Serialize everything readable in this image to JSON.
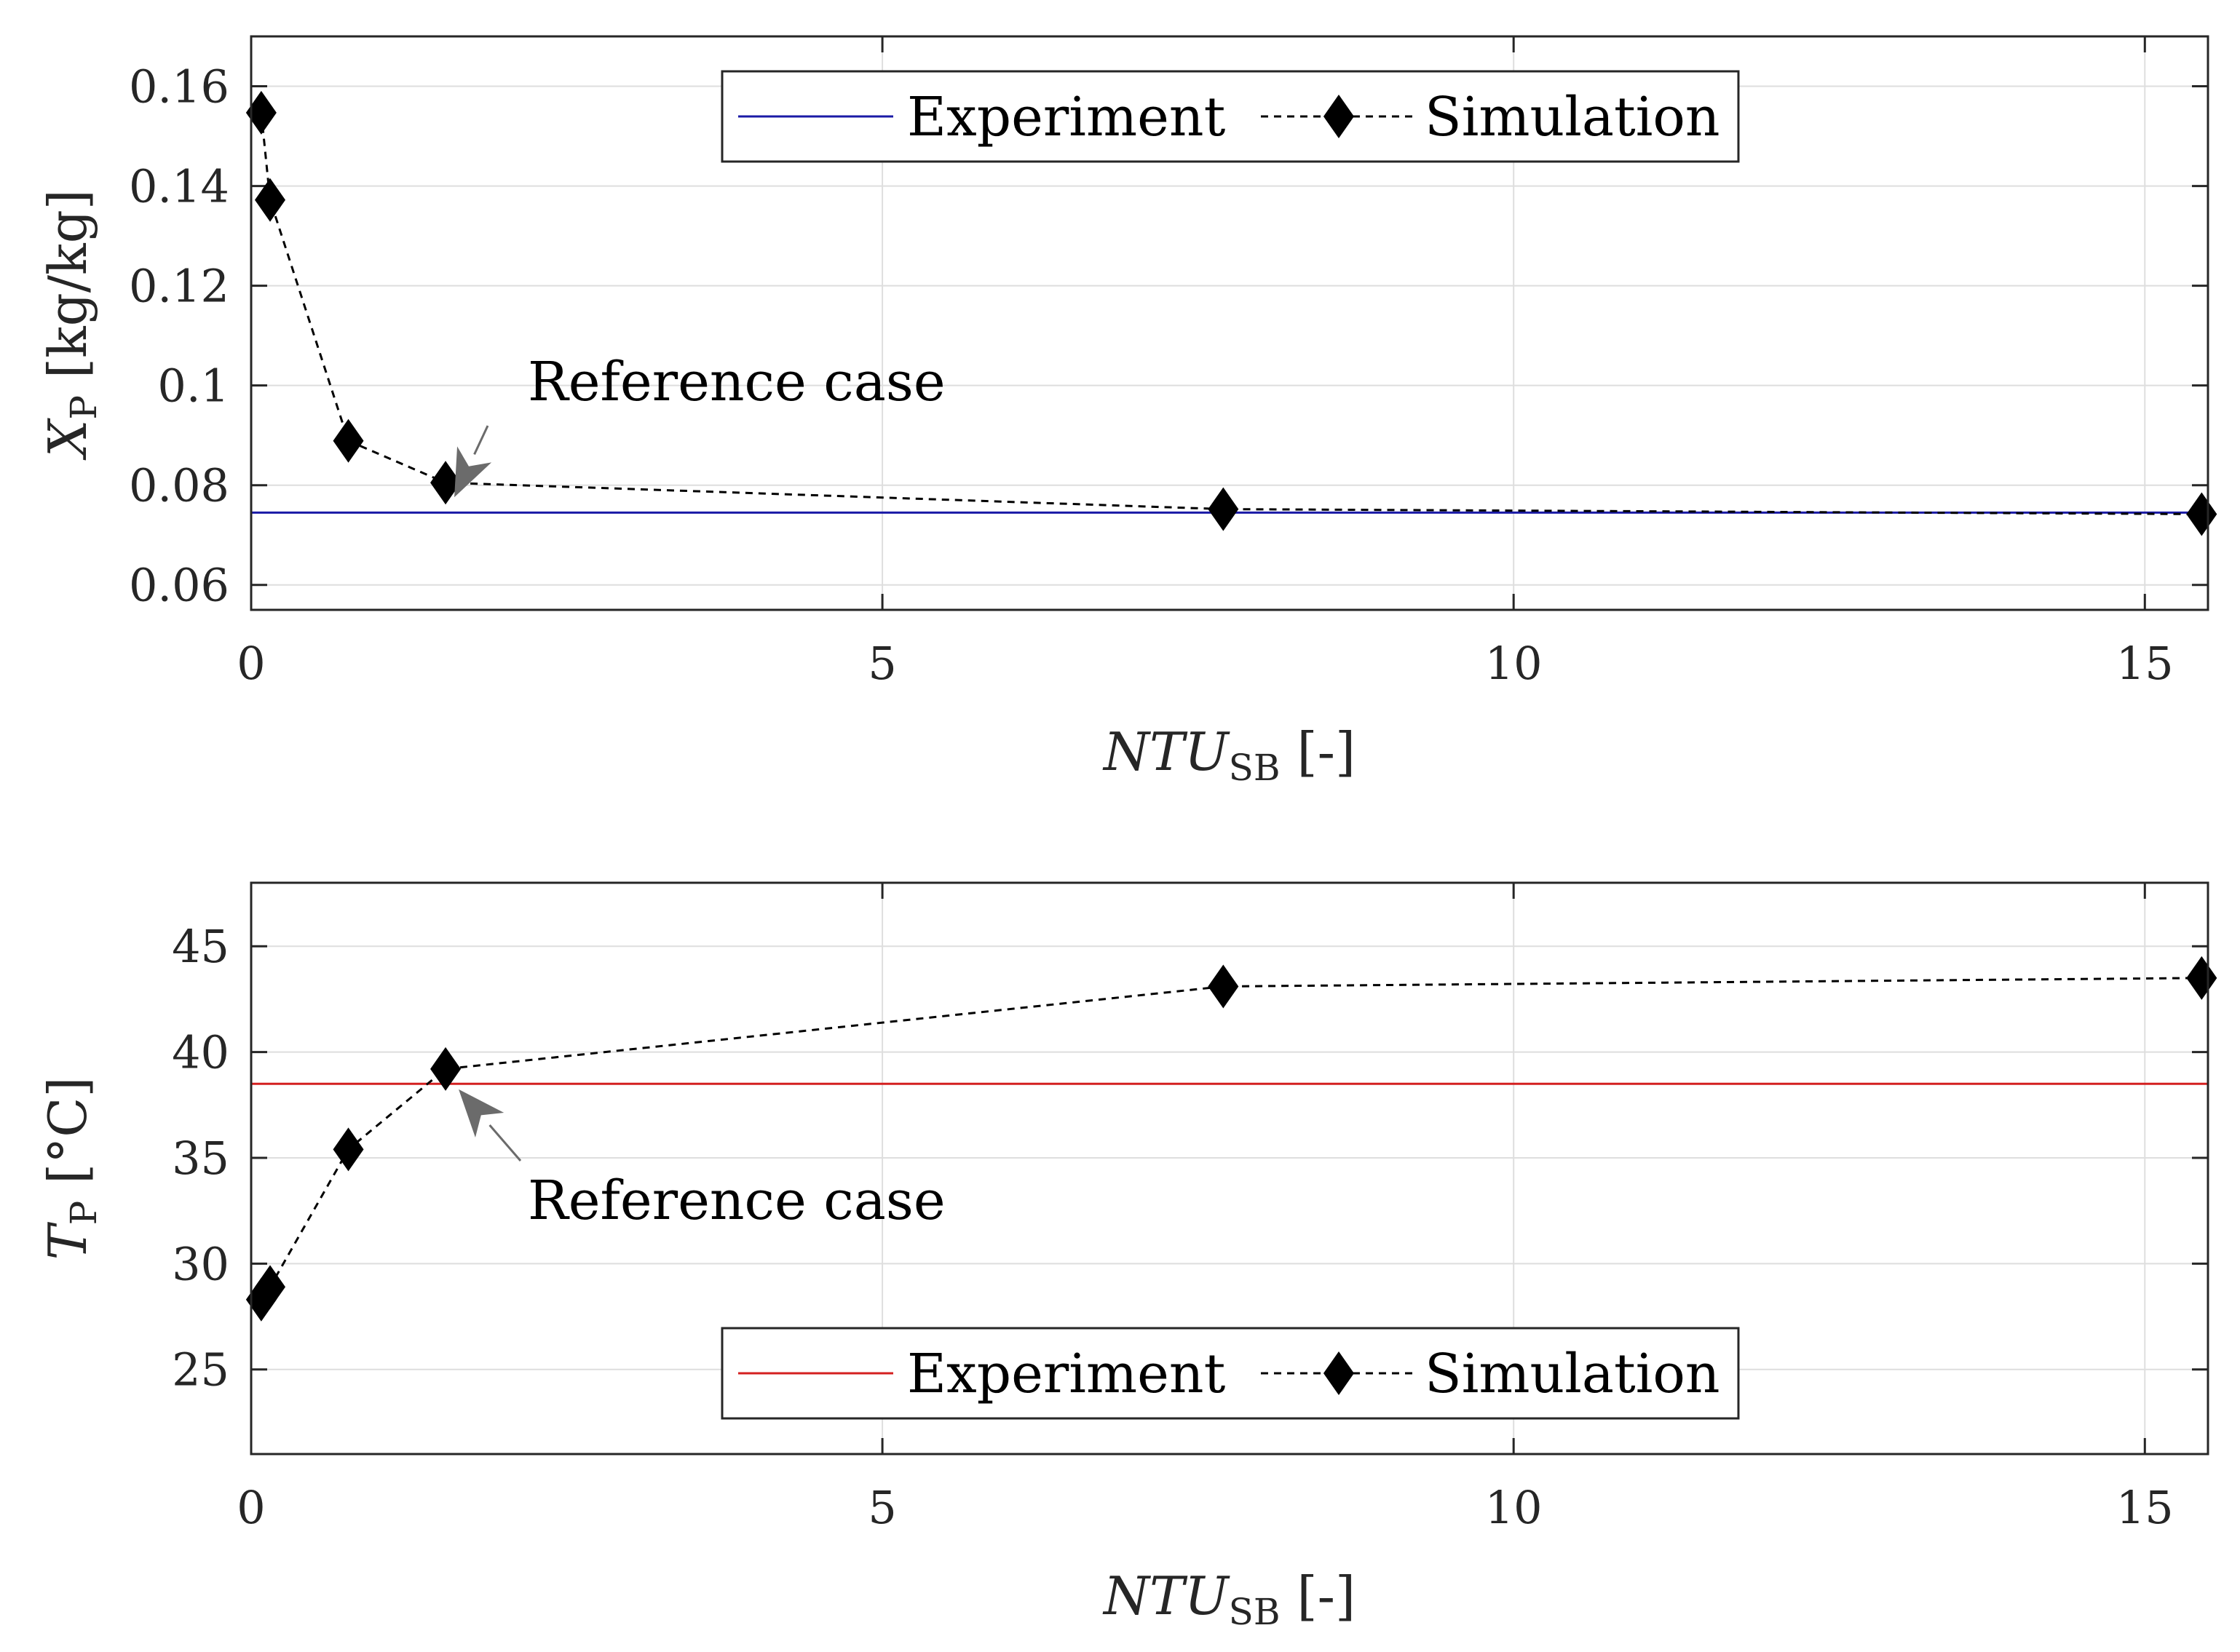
{
  "colors": {
    "experiment_top": "#1a1aa6",
    "experiment_bottom": "#d42020",
    "simulation": "#000000",
    "annotation_arrow": "#6b6b6b"
  },
  "chart_data": [
    {
      "type": "line",
      "xlabel_main": "NTU",
      "xlabel_sub": "SB",
      "xlabel_unit": "[-]",
      "ylabel_main": "X",
      "ylabel_sub": "P",
      "ylabel_unit": "[kg/kg]",
      "xlim": [
        0,
        15.5
      ],
      "ylim": [
        0.055,
        0.17
      ],
      "xticks": [
        0,
        5,
        10,
        15
      ],
      "yticks": [
        0.06,
        0.08,
        0.1,
        0.12,
        0.14,
        0.16
      ],
      "ytick_labels": [
        "0.06",
        "0.08",
        "0.1",
        "0.12",
        "0.14",
        "0.16"
      ],
      "grid": true,
      "legend_position": "top-center",
      "series": [
        {
          "name": "Experiment",
          "style": "solid-line",
          "x": [
            0,
            15.5
          ],
          "values": [
            0.0745,
            0.0745
          ]
        },
        {
          "name": "Simulation",
          "style": "dashed-diamond",
          "x": [
            0.08,
            0.15,
            0.77,
            1.54,
            7.7,
            15.45
          ],
          "values": [
            0.1547,
            0.1372,
            0.0889,
            0.0805,
            0.0752,
            0.0742
          ]
        }
      ],
      "annotation": {
        "text": "Reference case",
        "x": 1.54,
        "y": 0.0805
      }
    },
    {
      "type": "line",
      "xlabel_main": "NTU",
      "xlabel_sub": "SB",
      "xlabel_unit": "[-]",
      "ylabel_main": "T",
      "ylabel_sub": "P",
      "ylabel_unit": "[°C]",
      "xlim": [
        0,
        15.5
      ],
      "ylim": [
        21,
        48
      ],
      "xticks": [
        0,
        5,
        10,
        15
      ],
      "yticks": [
        25,
        30,
        35,
        40,
        45
      ],
      "ytick_labels": [
        "25",
        "30",
        "35",
        "40",
        "45"
      ],
      "grid": true,
      "legend_position": "bottom-center",
      "series": [
        {
          "name": "Experiment",
          "style": "solid-line",
          "x": [
            0,
            15.5
          ],
          "values": [
            38.5,
            38.5
          ]
        },
        {
          "name": "Simulation",
          "style": "dashed-diamond",
          "x": [
            0.08,
            0.15,
            0.77,
            1.54,
            7.7,
            15.45
          ],
          "values": [
            28.3,
            28.9,
            35.4,
            39.2,
            43.1,
            43.5
          ]
        }
      ],
      "annotation": {
        "text": "Reference case",
        "x": 1.54,
        "y": 39.2
      }
    }
  ]
}
